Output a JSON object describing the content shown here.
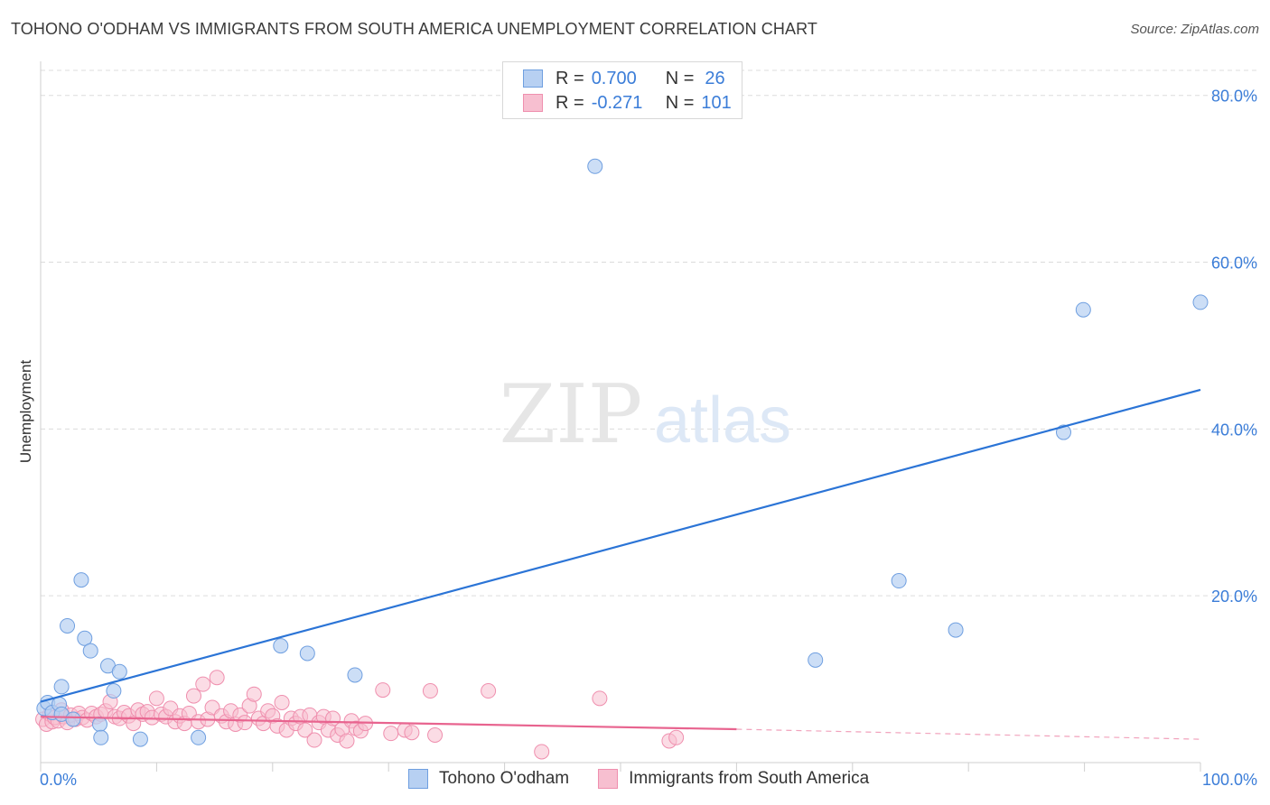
{
  "title": "TOHONO O'ODHAM VS IMMIGRANTS FROM SOUTH AMERICA UNEMPLOYMENT CORRELATION CHART",
  "source": "Source: ZipAtlas.com",
  "watermark": {
    "zip": "ZIP",
    "atlas": "atlas"
  },
  "legend": {
    "r_label": "R =",
    "n_label": "N =",
    "series": [
      {
        "name": "Tohono O'odham",
        "r": "0.700",
        "n": "26"
      },
      {
        "name": "Immigrants from South America",
        "r": "-0.271",
        "n": "101"
      }
    ]
  },
  "colors": {
    "blue_fill": "#b7d0f2",
    "blue_stroke": "#6f9fe0",
    "blue_line": "#2b74d6",
    "pink_fill": "#f7bfd0",
    "pink_stroke": "#ef8fae",
    "pink_line": "#e8648f",
    "axis_label": "#3b7dd8"
  },
  "chart_data": {
    "type": "scatter",
    "title": "TOHONO O'ODHAM VS IMMIGRANTS FROM SOUTH AMERICA UNEMPLOYMENT CORRELATION CHART",
    "xlabel": "",
    "ylabel": "Unemployment",
    "xlim": [
      0,
      100
    ],
    "ylim": [
      0,
      83
    ],
    "x_tick_labels": [
      "0.0%",
      "100.0%"
    ],
    "y_ticks": [
      20,
      40,
      60,
      80
    ],
    "y_tick_labels": [
      "20.0%",
      "40.0%",
      "60.0%",
      "80.0%"
    ],
    "series": [
      {
        "name": "Tohono O'odham",
        "points": [
          [
            0.3,
            6.5
          ],
          [
            0.6,
            7.2
          ],
          [
            1.0,
            6.0
          ],
          [
            1.6,
            7.0
          ],
          [
            1.8,
            5.8
          ],
          [
            1.8,
            9.1
          ],
          [
            2.3,
            16.4
          ],
          [
            2.8,
            5.2
          ],
          [
            3.5,
            21.9
          ],
          [
            3.8,
            14.9
          ],
          [
            4.3,
            13.4
          ],
          [
            5.1,
            4.6
          ],
          [
            5.2,
            3.0
          ],
          [
            5.8,
            11.6
          ],
          [
            6.3,
            8.6
          ],
          [
            6.8,
            10.9
          ],
          [
            8.6,
            2.8
          ],
          [
            13.6,
            3.0
          ],
          [
            20.7,
            14.0
          ],
          [
            23.0,
            13.1
          ],
          [
            27.1,
            10.5
          ],
          [
            47.8,
            71.5
          ],
          [
            66.8,
            12.3
          ],
          [
            74.0,
            21.8
          ],
          [
            78.9,
            15.9
          ],
          [
            88.2,
            39.6
          ],
          [
            89.9,
            54.3
          ],
          [
            100.0,
            55.2
          ]
        ],
        "trend": {
          "x": [
            0,
            100
          ],
          "y": [
            7.3,
            44.7
          ]
        }
      },
      {
        "name": "Immigrants from South America",
        "points": [
          [
            0.2,
            5.2
          ],
          [
            0.5,
            4.6
          ],
          [
            0.8,
            5.8
          ],
          [
            1.0,
            4.9
          ],
          [
            1.2,
            5.4
          ],
          [
            1.5,
            5.0
          ],
          [
            1.8,
            6.3
          ],
          [
            2.0,
            5.5
          ],
          [
            2.3,
            4.8
          ],
          [
            2.6,
            5.7
          ],
          [
            3.0,
            5.2
          ],
          [
            3.3,
            5.9
          ],
          [
            3.6,
            5.4
          ],
          [
            4.0,
            5.1
          ],
          [
            4.4,
            5.9
          ],
          [
            4.8,
            5.5
          ],
          [
            5.2,
            5.8
          ],
          [
            5.6,
            6.2
          ],
          [
            6.0,
            7.3
          ],
          [
            6.4,
            5.5
          ],
          [
            6.8,
            5.3
          ],
          [
            7.2,
            6.0
          ],
          [
            7.6,
            5.6
          ],
          [
            8.0,
            4.7
          ],
          [
            8.4,
            6.3
          ],
          [
            8.8,
            5.8
          ],
          [
            9.2,
            6.1
          ],
          [
            9.6,
            5.4
          ],
          [
            10.0,
            7.7
          ],
          [
            10.4,
            5.8
          ],
          [
            10.8,
            5.5
          ],
          [
            11.2,
            6.5
          ],
          [
            11.6,
            4.9
          ],
          [
            12.0,
            5.6
          ],
          [
            12.4,
            4.7
          ],
          [
            12.8,
            5.9
          ],
          [
            13.2,
            8.0
          ],
          [
            13.6,
            4.9
          ],
          [
            14.0,
            9.4
          ],
          [
            14.4,
            5.2
          ],
          [
            14.8,
            6.6
          ],
          [
            15.2,
            10.2
          ],
          [
            15.6,
            5.6
          ],
          [
            16.0,
            4.9
          ],
          [
            16.4,
            6.2
          ],
          [
            16.8,
            4.6
          ],
          [
            17.2,
            5.7
          ],
          [
            17.6,
            4.8
          ],
          [
            18.0,
            6.8
          ],
          [
            18.4,
            8.2
          ],
          [
            18.8,
            5.3
          ],
          [
            19.2,
            4.7
          ],
          [
            19.6,
            6.2
          ],
          [
            20.0,
            5.6
          ],
          [
            20.4,
            4.4
          ],
          [
            20.8,
            7.2
          ],
          [
            21.2,
            3.9
          ],
          [
            21.6,
            5.3
          ],
          [
            22.0,
            4.7
          ],
          [
            22.4,
            5.5
          ],
          [
            22.8,
            3.9
          ],
          [
            23.2,
            5.7
          ],
          [
            23.6,
            2.7
          ],
          [
            24.0,
            4.8
          ],
          [
            24.4,
            5.5
          ],
          [
            24.8,
            3.9
          ],
          [
            25.2,
            5.3
          ],
          [
            25.6,
            3.3
          ],
          [
            26.0,
            4.0
          ],
          [
            26.4,
            2.6
          ],
          [
            26.8,
            5.0
          ],
          [
            27.2,
            4.1
          ],
          [
            27.6,
            3.8
          ],
          [
            28.0,
            4.7
          ],
          [
            29.5,
            8.7
          ],
          [
            30.2,
            3.5
          ],
          [
            31.4,
            3.9
          ],
          [
            32.0,
            3.6
          ],
          [
            33.6,
            8.6
          ],
          [
            34.0,
            3.3
          ],
          [
            38.6,
            8.6
          ],
          [
            43.2,
            1.3
          ],
          [
            48.2,
            7.7
          ],
          [
            54.2,
            2.6
          ],
          [
            54.8,
            3.0
          ]
        ],
        "trend": {
          "x": [
            0,
            60
          ],
          "y": [
            5.5,
            4.0
          ]
        },
        "trend_extension": {
          "x": [
            60,
            100
          ],
          "y": [
            4.0,
            2.8
          ]
        }
      }
    ]
  }
}
